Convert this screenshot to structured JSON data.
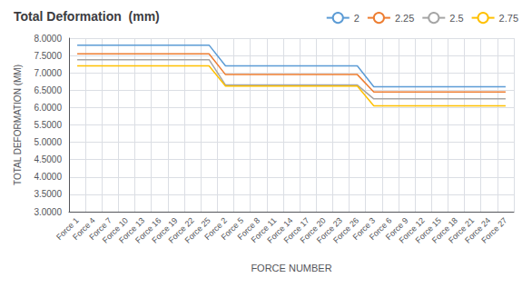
{
  "chart_data": {
    "type": "line",
    "title": "Total Deformation  (mm)",
    "xlabel": "FORCE NUMBER",
    "ylabel": "TOTAL DEFORMATION (MM)",
    "categories": [
      "Force 1",
      "Force 4",
      "Force 7",
      "Force 10",
      "Force 13",
      "Force 16",
      "Force 19",
      "Force 22",
      "Force 25",
      "Force 2",
      "Force 5",
      "Force 8",
      "Force 11",
      "Force 14",
      "Force 17",
      "Force 20",
      "Force 23",
      "Force 26",
      "Force 3",
      "Force 6",
      "Force 9",
      "Force 12",
      "Force 15",
      "Force 18",
      "Force 21",
      "Force 24",
      "Force 27"
    ],
    "series": [
      {
        "name": "2",
        "color": "#5b9bd5",
        "values": [
          7.8,
          7.8,
          7.8,
          7.8,
          7.8,
          7.8,
          7.8,
          7.8,
          7.8,
          7.2,
          7.2,
          7.2,
          7.2,
          7.2,
          7.2,
          7.2,
          7.2,
          7.2,
          6.6,
          6.6,
          6.6,
          6.6,
          6.6,
          6.6,
          6.6,
          6.6,
          6.6
        ]
      },
      {
        "name": "2.25",
        "color": "#ed7d31",
        "values": [
          7.55,
          7.55,
          7.55,
          7.55,
          7.55,
          7.55,
          7.55,
          7.55,
          7.55,
          6.95,
          6.95,
          6.95,
          6.95,
          6.95,
          6.95,
          6.95,
          6.95,
          6.95,
          6.45,
          6.45,
          6.45,
          6.45,
          6.45,
          6.45,
          6.45,
          6.45,
          6.45
        ]
      },
      {
        "name": "2.5",
        "color": "#a5a5a5",
        "values": [
          7.38,
          7.38,
          7.38,
          7.38,
          7.38,
          7.38,
          7.38,
          7.38,
          7.38,
          6.65,
          6.65,
          6.65,
          6.65,
          6.65,
          6.65,
          6.65,
          6.65,
          6.65,
          6.25,
          6.25,
          6.25,
          6.25,
          6.25,
          6.25,
          6.25,
          6.25,
          6.25
        ]
      },
      {
        "name": "2.75",
        "color": "#ffc000",
        "values": [
          7.2,
          7.2,
          7.2,
          7.2,
          7.2,
          7.2,
          7.2,
          7.2,
          7.2,
          6.62,
          6.62,
          6.62,
          6.62,
          6.62,
          6.62,
          6.62,
          6.62,
          6.62,
          6.05,
          6.05,
          6.05,
          6.05,
          6.05,
          6.05,
          6.05,
          6.05,
          6.05
        ]
      }
    ],
    "ylim": [
      3.0,
      8.0
    ],
    "yticks": [
      {
        "value": 3.0,
        "label": "3.0000"
      },
      {
        "value": 3.5,
        "label": "3.5000"
      },
      {
        "value": 4.0,
        "label": "4.0000"
      },
      {
        "value": 4.5,
        "label": "4.5000"
      },
      {
        "value": 5.0,
        "label": "5.0000"
      },
      {
        "value": 5.5,
        "label": "5.5000"
      },
      {
        "value": 6.0,
        "label": "6.0000"
      },
      {
        "value": 6.5,
        "label": "6.5000"
      },
      {
        "value": 7.0,
        "label": "7.0000"
      },
      {
        "value": 7.5,
        "label": "7.5000"
      },
      {
        "value": 8.0,
        "label": "8.0000"
      }
    ],
    "grid": true,
    "legend": "upper right"
  }
}
